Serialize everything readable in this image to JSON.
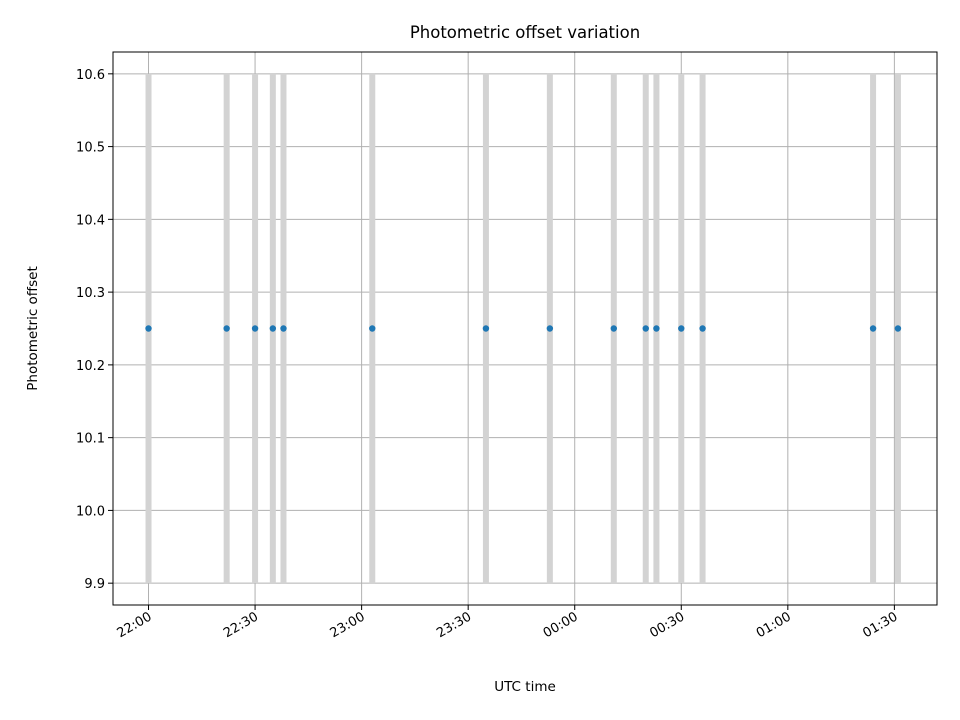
{
  "chart_data": {
    "type": "scatter",
    "title": "Photometric offset variation",
    "xlabel": "UTC time",
    "ylabel": "Photometric offset",
    "x_tick_labels": [
      "22:00",
      "22:30",
      "23:00",
      "23:30",
      "00:00",
      "00:30",
      "01:00",
      "01:30"
    ],
    "y_tick_labels": [
      "9.9",
      "10.0",
      "10.1",
      "10.2",
      "10.3",
      "10.4",
      "10.5",
      "10.6"
    ],
    "xlim": [
      "21:50",
      "01:42"
    ],
    "ylim": [
      9.87,
      10.63
    ],
    "grid": true,
    "series": [
      {
        "values": [
          {
            "x": "22:00",
            "y": 10.25,
            "err_low": 9.9,
            "err_high": 10.6
          },
          {
            "x": "22:22",
            "y": 10.25,
            "err_low": 9.9,
            "err_high": 10.6
          },
          {
            "x": "22:30",
            "y": 10.25,
            "err_low": 9.9,
            "err_high": 10.6
          },
          {
            "x": "22:35",
            "y": 10.25,
            "err_low": 9.9,
            "err_high": 10.6
          },
          {
            "x": "22:38",
            "y": 10.25,
            "err_low": 9.9,
            "err_high": 10.6
          },
          {
            "x": "23:03",
            "y": 10.25,
            "err_low": 9.9,
            "err_high": 10.6
          },
          {
            "x": "23:35",
            "y": 10.25,
            "err_low": 9.9,
            "err_high": 10.6
          },
          {
            "x": "23:53",
            "y": 10.25,
            "err_low": 9.9,
            "err_high": 10.6
          },
          {
            "x": "00:11",
            "y": 10.25,
            "err_low": 9.9,
            "err_high": 10.6
          },
          {
            "x": "00:20",
            "y": 10.25,
            "err_low": 9.9,
            "err_high": 10.6
          },
          {
            "x": "00:23",
            "y": 10.25,
            "err_low": 9.9,
            "err_high": 10.6
          },
          {
            "x": "00:30",
            "y": 10.25,
            "err_low": 9.9,
            "err_high": 10.6
          },
          {
            "x": "00:36",
            "y": 10.25,
            "err_low": 9.9,
            "err_high": 10.6
          },
          {
            "x": "01:24",
            "y": 10.25,
            "err_low": 9.9,
            "err_high": 10.6
          },
          {
            "x": "01:31",
            "y": 10.25,
            "err_low": 9.9,
            "err_high": 10.6
          }
        ]
      }
    ],
    "colors": {
      "marker": "#1f77b4",
      "errorbar": "#d3d3d3",
      "grid": "#b0b0b0",
      "axes": "#000000"
    }
  }
}
